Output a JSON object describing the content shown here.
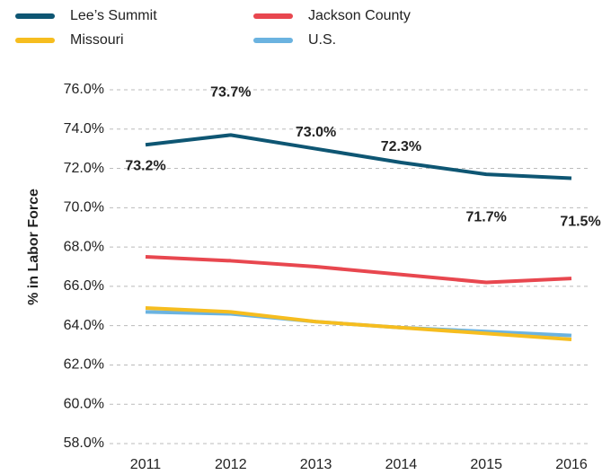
{
  "chart_data": {
    "type": "line",
    "y_label": "% in Labor Force",
    "categories": [
      "2011",
      "2012",
      "2013",
      "2014",
      "2015",
      "2016"
    ],
    "series": [
      {
        "name": "Lee’s Summit",
        "color": "#0e5673",
        "values": [
          73.2,
          73.7,
          73.0,
          72.3,
          71.7,
          71.5
        ],
        "value_labels": [
          "73.2%",
          "73.7%",
          "73.0%",
          "72.3%",
          "71.7%",
          "71.5%"
        ]
      },
      {
        "name": "Jackson County",
        "color": "#e8474f",
        "values": [
          67.5,
          67.3,
          67.0,
          66.6,
          66.2,
          66.4
        ]
      },
      {
        "name": "Missouri",
        "color": "#f6bd1f",
        "values": [
          64.9,
          64.7,
          64.2,
          63.9,
          63.6,
          63.3
        ]
      },
      {
        "name": "U.S.",
        "color": "#6bb3e0",
        "values": [
          64.7,
          64.6,
          64.2,
          63.9,
          63.7,
          63.5
        ]
      }
    ],
    "ylim": [
      58,
      76
    ],
    "yticks": [
      {
        "value": 58,
        "label": "58.0%"
      },
      {
        "value": 60,
        "label": "60.0%"
      },
      {
        "value": 62,
        "label": "62.0%"
      },
      {
        "value": 64,
        "label": "64.0%"
      },
      {
        "value": 66,
        "label": "66.0%"
      },
      {
        "value": 68,
        "label": "68.0%"
      },
      {
        "value": 70,
        "label": "70.0%"
      },
      {
        "value": 72,
        "label": "72.0%"
      },
      {
        "value": 74,
        "label": "74.0%"
      },
      {
        "value": 76,
        "label": "76.0%"
      }
    ],
    "grid": true,
    "legend": "top"
  }
}
